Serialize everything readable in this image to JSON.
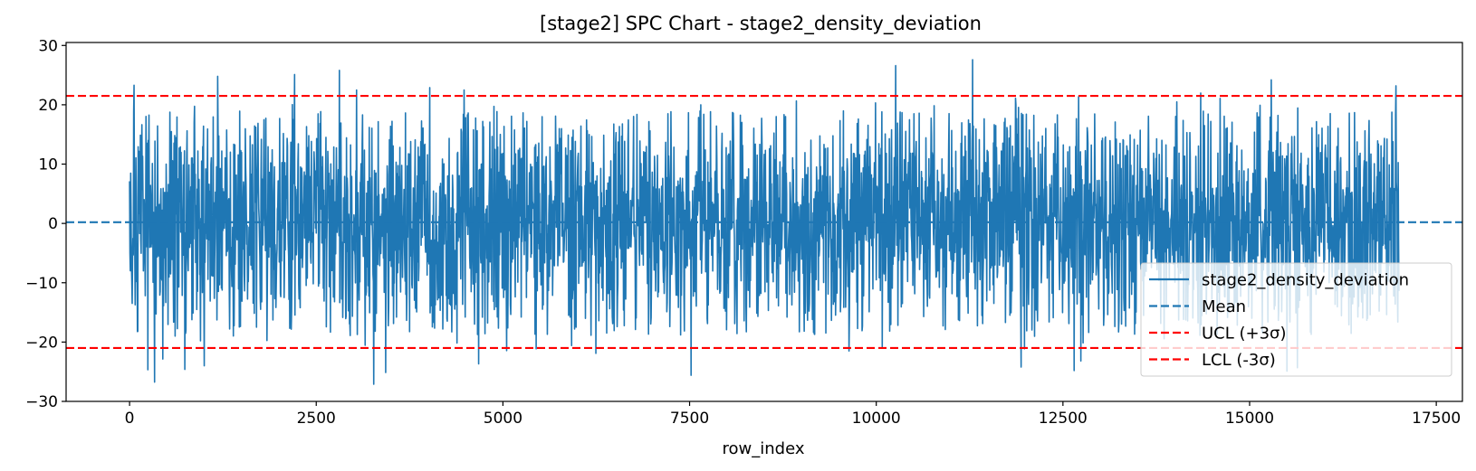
{
  "chart_data": {
    "type": "line",
    "title": "[stage2] SPC Chart - stage2_density_deviation",
    "xlabel": "row_index",
    "ylabel": "",
    "xlim": [
      -850,
      17850
    ],
    "ylim": [
      -30,
      30.5
    ],
    "x_ticks": [
      0,
      2500,
      5000,
      7500,
      10000,
      12500,
      15000,
      17500
    ],
    "y_ticks": [
      -30,
      -20,
      -10,
      0,
      10,
      20,
      30
    ],
    "grid": false,
    "legend_position": "lower-right",
    "series": [
      {
        "name": "stage2_density_deviation",
        "kind": "data",
        "color": "#1f77b4",
        "x_range": [
          0,
          17000
        ],
        "typical_band": [
          -9,
          9
        ],
        "peaks": [
          {
            "x": 60,
            "y": 23.3
          },
          {
            "x": 1180,
            "y": 24.8
          },
          {
            "x": 2210,
            "y": 25.1
          },
          {
            "x": 2810,
            "y": 25.8
          },
          {
            "x": 4020,
            "y": 22.9
          },
          {
            "x": 4480,
            "y": 22.5
          },
          {
            "x": 10260,
            "y": 26.6
          },
          {
            "x": 11290,
            "y": 27.6
          },
          {
            "x": 15290,
            "y": 24.2
          },
          {
            "x": 16960,
            "y": 23.2
          }
        ],
        "troughs": [
          {
            "x": 740,
            "y": -24.6
          },
          {
            "x": 1000,
            "y": -24.0
          },
          {
            "x": 3270,
            "y": -27.1
          },
          {
            "x": 7520,
            "y": -25.6
          },
          {
            "x": 11940,
            "y": -24.2
          },
          {
            "x": 15500,
            "y": -24.9
          }
        ]
      },
      {
        "name": "Mean",
        "kind": "hline",
        "value": 0.2,
        "color": "#1f77b4",
        "style": "dashed"
      },
      {
        "name": "UCL (+3σ)",
        "kind": "hline",
        "value": 21.5,
        "color": "#ff0000",
        "style": "dashed"
      },
      {
        "name": "LCL (-3σ)",
        "kind": "hline",
        "value": -21.0,
        "color": "#ff0000",
        "style": "dashed"
      }
    ]
  }
}
